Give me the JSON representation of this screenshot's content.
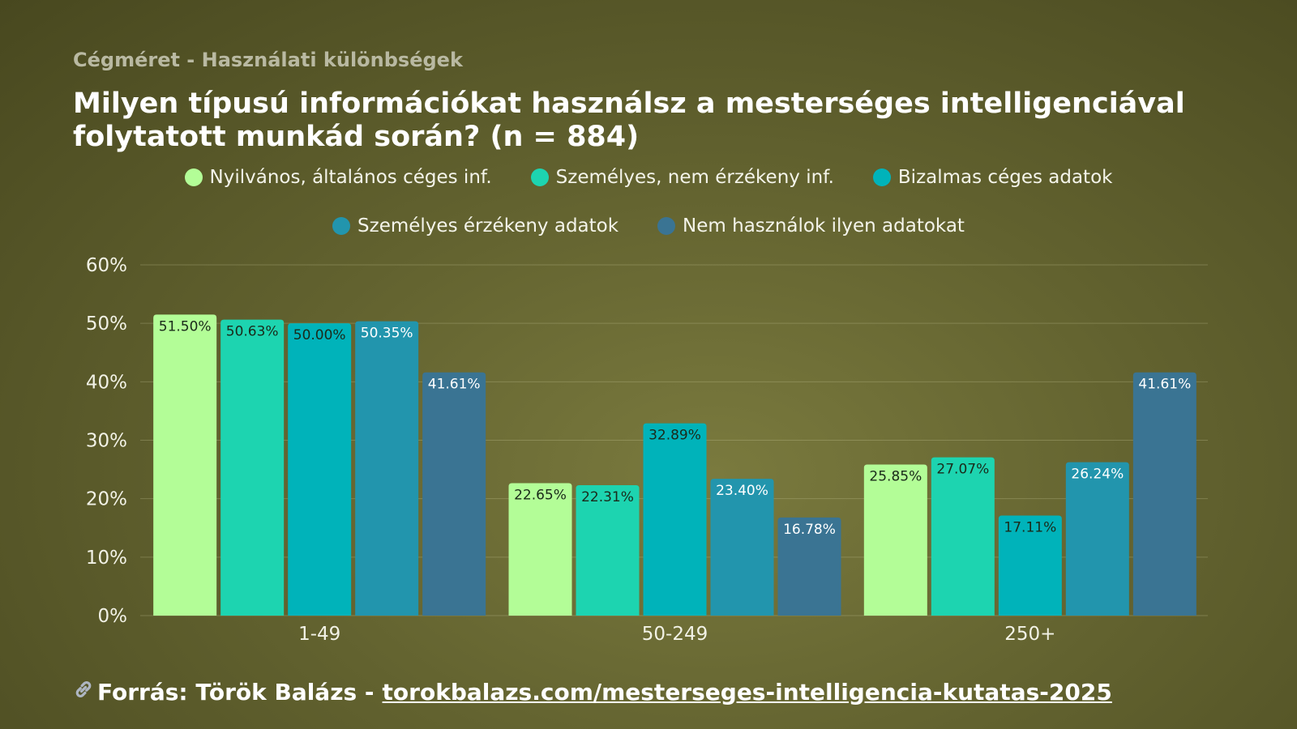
{
  "header": {
    "subtitle": "Cégméret - Használati különbségek",
    "title": "Milyen típusú információkat használsz a mesterséges intelligenciával folytatott munkád során? (n = 884)"
  },
  "source": {
    "label": "Forrás: Török Balázs -",
    "url_text": "torokbalazs.com/mesterseges-intelligencia-kutatas-2025",
    "icon": "link-icon"
  },
  "chart_data": {
    "type": "bar",
    "categories": [
      "1-49",
      "50-249",
      "250+"
    ],
    "series": [
      {
        "name": "Nyilvános, általános céges inf.",
        "color": "#b3fd97",
        "values": [
          51.5,
          22.65,
          25.85
        ],
        "labels": [
          "51.50%",
          "22.65%",
          "25.85%"
        ]
      },
      {
        "name": "Személyes, nem érzékeny inf.",
        "color": "#1dd4b0",
        "values": [
          50.63,
          22.31,
          27.07
        ],
        "labels": [
          "50.63%",
          "22.31%",
          "27.07%"
        ]
      },
      {
        "name": "Bizalmas céges adatok",
        "color": "#00b3ba",
        "values": [
          50.0,
          32.89,
          17.11
        ],
        "labels": [
          "50.00%",
          "32.89%",
          "17.11%"
        ]
      },
      {
        "name": "Személyes érzékeny adatok",
        "color": "#2295ad",
        "values": [
          50.35,
          23.4,
          26.24
        ],
        "labels": [
          "50.35%",
          "23.40%",
          "26.24%"
        ]
      },
      {
        "name": "Nem használok ilyen adatokat",
        "color": "#3a7493",
        "values": [
          41.61,
          16.78,
          41.61
        ],
        "labels": [
          "41.61%",
          "16.78%",
          "41.61%"
        ]
      }
    ],
    "ylim": [
      0,
      60
    ],
    "yticks": [
      "0%",
      "10%",
      "20%",
      "30%",
      "40%",
      "50%",
      "60%"
    ],
    "grid": true,
    "legend_position": "top"
  }
}
